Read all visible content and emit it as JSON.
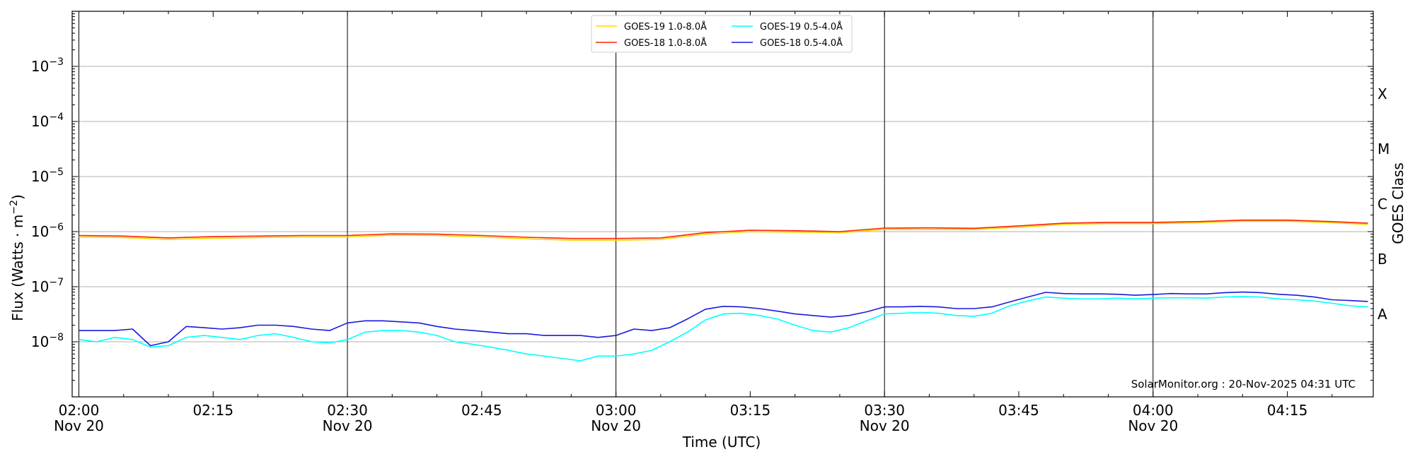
{
  "chart_data": {
    "type": "line",
    "xlabel": "Time (UTC)",
    "ylabel": "Flux (Watts · m",
    "ylabel_sup": "−2",
    "ylabel_close": ")",
    "right_label": "GOES Class",
    "y_scale": "log",
    "ylim": [
      1e-09,
      0.01
    ],
    "xlim": [
      "02:00",
      "04:24"
    ],
    "x_ticks": [
      {
        "t": "02:00",
        "line1": "02:00",
        "line2": "Nov 20"
      },
      {
        "t": "02:15",
        "line1": "02:15",
        "line2": ""
      },
      {
        "t": "02:30",
        "line1": "02:30",
        "line2": "Nov 20"
      },
      {
        "t": "02:45",
        "line1": "02:45",
        "line2": ""
      },
      {
        "t": "03:00",
        "line1": "03:00",
        "line2": "Nov 20"
      },
      {
        "t": "03:15",
        "line1": "03:15",
        "line2": ""
      },
      {
        "t": "03:30",
        "line1": "03:30",
        "line2": "Nov 20"
      },
      {
        "t": "03:45",
        "line1": "03:45",
        "line2": ""
      },
      {
        "t": "04:00",
        "line1": "04:00",
        "line2": "Nov 20"
      },
      {
        "t": "04:15",
        "line1": "04:15",
        "line2": ""
      }
    ],
    "y_ticks": [
      {
        "exp": -8,
        "base": "10",
        "sup": "−8"
      },
      {
        "exp": -7,
        "base": "10",
        "sup": "−7"
      },
      {
        "exp": -6,
        "base": "10",
        "sup": "−6"
      },
      {
        "exp": -5,
        "base": "10",
        "sup": "−5"
      },
      {
        "exp": -4,
        "base": "10",
        "sup": "−4"
      },
      {
        "exp": -3,
        "base": "10",
        "sup": "−3"
      }
    ],
    "goes_classes": [
      {
        "label": "A",
        "exp": -7.5
      },
      {
        "label": "B",
        "exp": -6.5
      },
      {
        "label": "C",
        "exp": -5.5
      },
      {
        "label": "M",
        "exp": -4.5
      },
      {
        "label": "X",
        "exp": -3.5
      }
    ],
    "vertical_lines": [
      "02:00",
      "02:30",
      "03:00",
      "03:30",
      "04:00"
    ],
    "grid": "horizontal at decades",
    "legend_position": "top-center",
    "series": [
      {
        "name": "GOES-19 1.0-8.0Å",
        "color": "#ffd700",
        "x": [
          "02:00",
          "02:05",
          "02:10",
          "02:15",
          "02:20",
          "02:25",
          "02:30",
          "02:35",
          "02:40",
          "02:45",
          "02:50",
          "02:55",
          "03:00",
          "03:05",
          "03:10",
          "03:15",
          "03:20",
          "03:25",
          "03:30",
          "03:35",
          "03:40",
          "03:45",
          "03:50",
          "03:55",
          "04:00",
          "04:05",
          "04:10",
          "04:15",
          "04:20",
          "04:24"
        ],
        "y": [
          8e-07,
          7.8e-07,
          7.2e-07,
          7.6e-07,
          7.8e-07,
          8e-07,
          8e-07,
          8.6e-07,
          8.5e-07,
          8e-07,
          7.4e-07,
          7e-07,
          7e-07,
          7.2e-07,
          9e-07,
          1e-06,
          9.8e-07,
          9.5e-07,
          1.1e-06,
          1.1e-06,
          1.1e-06,
          1.2e-06,
          1.35e-06,
          1.4e-06,
          1.4e-06,
          1.45e-06,
          1.55e-06,
          1.55e-06,
          1.45e-06,
          1.35e-06
        ]
      },
      {
        "name": "GOES-18 1.0-8.0Å",
        "color": "#ff2200",
        "x": [
          "02:00",
          "02:05",
          "02:10",
          "02:15",
          "02:20",
          "02:25",
          "02:30",
          "02:35",
          "02:40",
          "02:45",
          "02:50",
          "02:55",
          "03:00",
          "03:05",
          "03:10",
          "03:15",
          "03:20",
          "03:25",
          "03:30",
          "03:35",
          "03:40",
          "03:45",
          "03:50",
          "03:55",
          "04:00",
          "04:05",
          "04:10",
          "04:15",
          "04:20",
          "04:24"
        ],
        "y": [
          8.5e-07,
          8.3e-07,
          7.7e-07,
          8.1e-07,
          8.3e-07,
          8.5e-07,
          8.5e-07,
          9.1e-07,
          9e-07,
          8.5e-07,
          7.9e-07,
          7.5e-07,
          7.5e-07,
          7.7e-07,
          9.6e-07,
          1.06e-06,
          1.04e-06,
          1e-06,
          1.16e-06,
          1.17e-06,
          1.15e-06,
          1.27e-06,
          1.42e-06,
          1.47e-06,
          1.47e-06,
          1.52e-06,
          1.62e-06,
          1.62e-06,
          1.52e-06,
          1.42e-06
        ]
      },
      {
        "name": "GOES-19 0.5-4.0Å",
        "color": "#00ffff",
        "x": [
          "02:00",
          "02:02",
          "02:04",
          "02:06",
          "02:08",
          "02:10",
          "02:12",
          "02:14",
          "02:16",
          "02:18",
          "02:20",
          "02:22",
          "02:24",
          "02:26",
          "02:28",
          "02:30",
          "02:32",
          "02:34",
          "02:36",
          "02:38",
          "02:40",
          "02:42",
          "02:44",
          "02:46",
          "02:48",
          "02:50",
          "02:52",
          "02:54",
          "02:56",
          "02:58",
          "03:00",
          "03:02",
          "03:04",
          "03:06",
          "03:08",
          "03:10",
          "03:12",
          "03:14",
          "03:16",
          "03:18",
          "03:20",
          "03:22",
          "03:24",
          "03:26",
          "03:28",
          "03:30",
          "03:32",
          "03:34",
          "03:36",
          "03:38",
          "03:40",
          "03:42",
          "03:44",
          "03:46",
          "03:48",
          "03:50",
          "03:52",
          "03:54",
          "03:56",
          "03:58",
          "04:00",
          "04:02",
          "04:04",
          "04:06",
          "04:08",
          "04:10",
          "04:12",
          "04:14",
          "04:16",
          "04:18",
          "04:20",
          "04:22",
          "04:24"
        ],
        "y": [
          1.1e-08,
          1e-08,
          1.2e-08,
          1.1e-08,
          8e-09,
          8.5e-09,
          1.2e-08,
          1.3e-08,
          1.2e-08,
          1.1e-08,
          1.3e-08,
          1.4e-08,
          1.2e-08,
          1e-08,
          9.5e-09,
          1.1e-08,
          1.5e-08,
          1.6e-08,
          1.6e-08,
          1.5e-08,
          1.3e-08,
          1e-08,
          9e-09,
          8e-09,
          7e-09,
          6e-09,
          5.5e-09,
          5e-09,
          4.5e-09,
          5.5e-09,
          5.5e-09,
          6e-09,
          7e-09,
          1e-08,
          1.5e-08,
          2.5e-08,
          3.2e-08,
          3.3e-08,
          3e-08,
          2.6e-08,
          2e-08,
          1.6e-08,
          1.5e-08,
          1.8e-08,
          2.4e-08,
          3.2e-08,
          3.3e-08,
          3.4e-08,
          3.3e-08,
          3e-08,
          2.9e-08,
          3.3e-08,
          4.5e-08,
          5.5e-08,
          6.5e-08,
          6.2e-08,
          6e-08,
          6e-08,
          6.2e-08,
          6e-08,
          6.2e-08,
          6.3e-08,
          6.3e-08,
          6.2e-08,
          6.5e-08,
          6.6e-08,
          6.5e-08,
          6e-08,
          5.8e-08,
          5.5e-08,
          5e-08,
          4.5e-08,
          4.3e-08
        ]
      },
      {
        "name": "GOES-18 0.5-4.0Å",
        "color": "#1a1adb",
        "x": [
          "02:00",
          "02:02",
          "02:04",
          "02:06",
          "02:08",
          "02:10",
          "02:12",
          "02:14",
          "02:16",
          "02:18",
          "02:20",
          "02:22",
          "02:24",
          "02:26",
          "02:28",
          "02:30",
          "02:32",
          "02:34",
          "02:36",
          "02:38",
          "02:40",
          "02:42",
          "02:44",
          "02:46",
          "02:48",
          "02:50",
          "02:52",
          "02:54",
          "02:56",
          "02:58",
          "03:00",
          "03:02",
          "03:04",
          "03:06",
          "03:08",
          "03:10",
          "03:12",
          "03:14",
          "03:16",
          "03:18",
          "03:20",
          "03:22",
          "03:24",
          "03:26",
          "03:28",
          "03:30",
          "03:32",
          "03:34",
          "03:36",
          "03:38",
          "03:40",
          "03:42",
          "03:44",
          "03:46",
          "03:48",
          "03:50",
          "03:52",
          "03:54",
          "03:56",
          "03:58",
          "04:00",
          "04:02",
          "04:04",
          "04:06",
          "04:08",
          "04:10",
          "04:12",
          "04:14",
          "04:16",
          "04:18",
          "04:20",
          "04:22",
          "04:24"
        ],
        "y": [
          1.6e-08,
          1.6e-08,
          1.6e-08,
          1.7e-08,
          8.5e-09,
          1e-08,
          1.9e-08,
          1.8e-08,
          1.7e-08,
          1.8e-08,
          2e-08,
          2e-08,
          1.9e-08,
          1.7e-08,
          1.6e-08,
          2.2e-08,
          2.4e-08,
          2.4e-08,
          2.3e-08,
          2.2e-08,
          1.9e-08,
          1.7e-08,
          1.6e-08,
          1.5e-08,
          1.4e-08,
          1.4e-08,
          1.3e-08,
          1.3e-08,
          1.3e-08,
          1.2e-08,
          1.3e-08,
          1.7e-08,
          1.6e-08,
          1.8e-08,
          2.6e-08,
          3.9e-08,
          4.4e-08,
          4.3e-08,
          4e-08,
          3.6e-08,
          3.2e-08,
          3e-08,
          2.8e-08,
          3e-08,
          3.5e-08,
          4.3e-08,
          4.3e-08,
          4.4e-08,
          4.3e-08,
          4e-08,
          4e-08,
          4.3e-08,
          5.3e-08,
          6.5e-08,
          7.9e-08,
          7.5e-08,
          7.4e-08,
          7.4e-08,
          7.3e-08,
          7e-08,
          7.2e-08,
          7.5e-08,
          7.4e-08,
          7.4e-08,
          7.8e-08,
          8e-08,
          7.8e-08,
          7.3e-08,
          7e-08,
          6.5e-08,
          5.8e-08,
          5.6e-08,
          5.4e-08
        ]
      }
    ],
    "annotation": "SolarMonitor.org : 20-Nov-2025 04:31 UTC"
  }
}
